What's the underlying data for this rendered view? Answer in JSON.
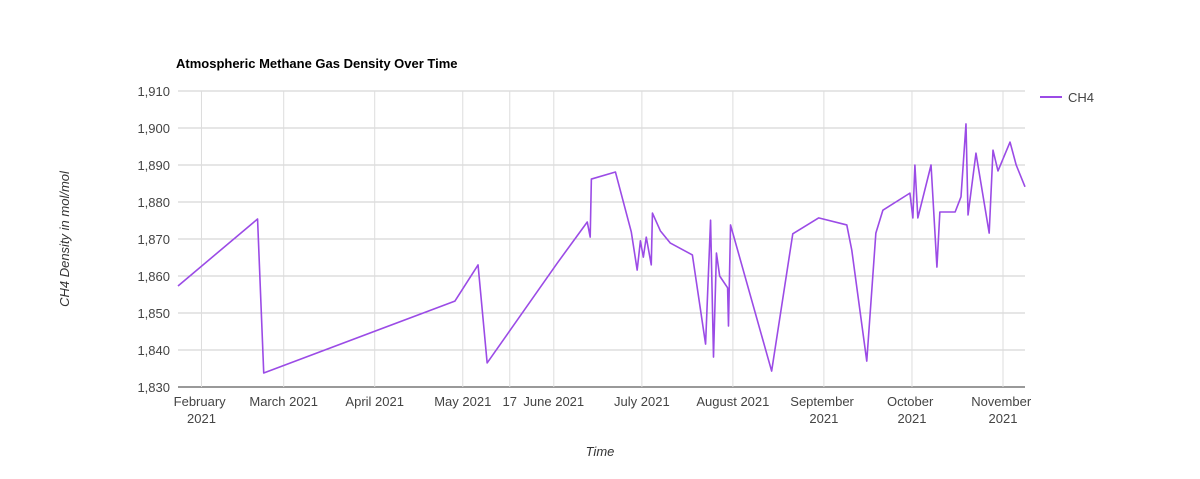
{
  "chart_data": {
    "type": "line",
    "title": "Atmospheric Methane Gas Density Over Time",
    "x_label": "Time",
    "y_label": "CH4 Density in mol/mol",
    "x": [
      24,
      51.1,
      53.2,
      118.3,
      126.2,
      129.3,
      153.2,
      163.4,
      164.4,
      164.8,
      173,
      178.4,
      180.4,
      181.5,
      182.5,
      183.5,
      185.2,
      185.6,
      188.3,
      191.7,
      199.2,
      203.7,
      205.4,
      206.4,
      207.4,
      208.5,
      211.2,
      211.5,
      212.2,
      226.2,
      233.4,
      242.2,
      251.8,
      253.5,
      258.6,
      261.7,
      264.1,
      273.3,
      274.3,
      275,
      276,
      280.5,
      282.5,
      283.5,
      288.7,
      290.7,
      292.4,
      293.1,
      295.8,
      300.3,
      301.6,
      303.3,
      307.4,
      309.5,
      312.5
    ],
    "series": [
      {
        "name": "CH4",
        "color": "#9b4be6",
        "values": [
          1857.3,
          1875.4,
          1833.8,
          1853.2,
          1863,
          1836.5,
          1863.5,
          1874.6,
          1870.5,
          1886.2,
          1888.1,
          1871.9,
          1861.6,
          1869.5,
          1865.1,
          1870.5,
          1863,
          1877,
          1872.2,
          1868.9,
          1865.7,
          1841.6,
          1875.1,
          1838.1,
          1866.2,
          1860,
          1856.8,
          1846.5,
          1873.8,
          1834.3,
          1871.4,
          1875.7,
          1873.8,
          1867,
          1837,
          1871.6,
          1877.8,
          1882.4,
          1875.7,
          1890,
          1875.7,
          1890,
          1862.4,
          1877.3,
          1877.3,
          1881.4,
          1901.1,
          1876.5,
          1893.2,
          1871.6,
          1894,
          1888.4,
          1896.2,
          1890,
          1884.1
        ]
      }
    ],
    "xlim": [
      24,
      312.5
    ],
    "xticks": [
      {
        "value": 32,
        "label": "February 2021"
      },
      {
        "value": 60,
        "label": "March 2021"
      },
      {
        "value": 91,
        "label": "April 2021"
      },
      {
        "value": 121,
        "label": "May 2021"
      },
      {
        "value": 137,
        "label": "17"
      },
      {
        "value": 152,
        "label": "June 2021"
      },
      {
        "value": 182,
        "label": "July 2021"
      },
      {
        "value": 213,
        "label": "August 2021"
      },
      {
        "value": 244,
        "label": "September 2021"
      },
      {
        "value": 274,
        "label": "October 2021"
      },
      {
        "value": 305,
        "label": "November 2021"
      }
    ],
    "ylim": [
      1830,
      1910
    ],
    "yticks": [
      {
        "value": 1830,
        "label": "1,830"
      },
      {
        "value": 1840,
        "label": "1,840"
      },
      {
        "value": 1850,
        "label": "1,850"
      },
      {
        "value": 1860,
        "label": "1,860"
      },
      {
        "value": 1870,
        "label": "1,870"
      },
      {
        "value": 1880,
        "label": "1,880"
      },
      {
        "value": 1890,
        "label": "1,890"
      },
      {
        "value": 1900,
        "label": "1,900"
      },
      {
        "value": 1910,
        "label": "1,910"
      }
    ],
    "grid": true,
    "legend": "right"
  }
}
